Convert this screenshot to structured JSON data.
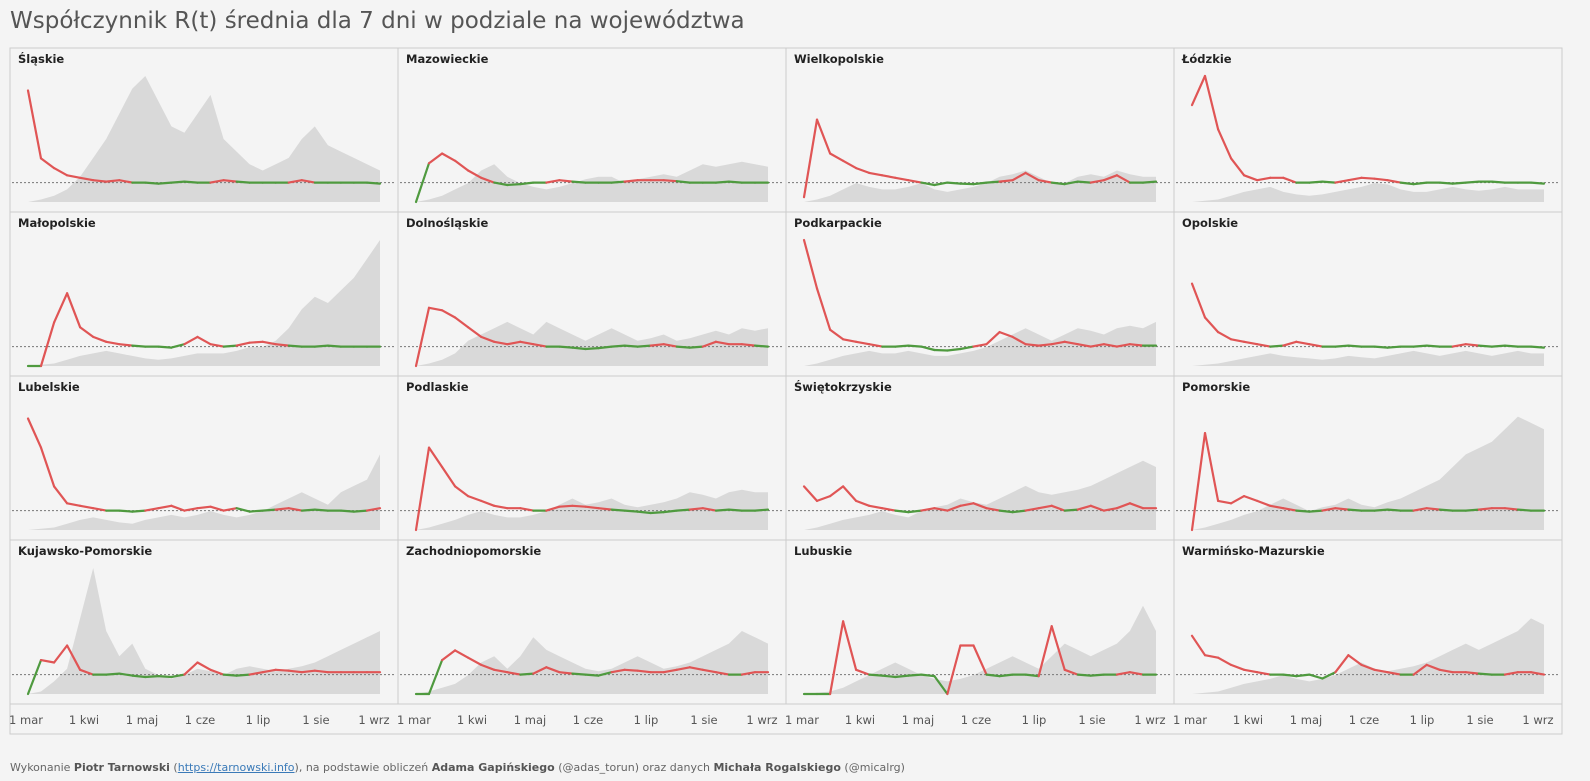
{
  "title": "Współczynnik R(t) średnia dla 7 dni w podziale na województwa",
  "footer": {
    "p1": "Wykonanie ",
    "author": "Piotr Tarnowski",
    "p2": " (",
    "link": "https://tarnowski.info",
    "p3": "), na podstawie obliczeń ",
    "calc": "Adama Gapińskiego",
    "p4": " (@adas_torun) oraz danych ",
    "data": "Michała Rogalskiego",
    "p5": " (@micalrg)"
  },
  "colors": {
    "above": "#e05555",
    "below": "#4f9a3f",
    "area": "#d9d9d9",
    "reference": "#777777",
    "border": "#cccccc"
  },
  "chart_data": {
    "type": "line",
    "ref_line": 1,
    "ylim": [
      0.6,
      3.2
    ],
    "x_ticks": [
      "1 mar",
      "1 kwi",
      "1 maj",
      "1 cze",
      "1 lip",
      "1 sie",
      "1 wrz"
    ],
    "series_encoding": "x = week index starting at 1 mar; Rt = 7-day average R(t); bg = relative daily cases (0-1)",
    "panels": [
      {
        "name": "Śląskie",
        "Rt": [
          2.9,
          1.5,
          1.3,
          1.15,
          1.1,
          1.05,
          1.02,
          1.05,
          1.0,
          1.0,
          0.98,
          1.0,
          1.02,
          1.0,
          1.0,
          1.05,
          1.02,
          1.0,
          1.0,
          1.0,
          1.0,
          1.05,
          1.0,
          1.0,
          1.0,
          1.0,
          1.0,
          0.98
        ],
        "bg": [
          0,
          0.02,
          0.05,
          0.1,
          0.2,
          0.35,
          0.5,
          0.7,
          0.9,
          1.0,
          0.8,
          0.6,
          0.55,
          0.7,
          0.85,
          0.5,
          0.4,
          0.3,
          0.25,
          0.3,
          0.35,
          0.5,
          0.6,
          0.45,
          0.4,
          0.35,
          0.3,
          0.25
        ]
      },
      {
        "name": "Mazowieckie",
        "Rt": [
          0.6,
          1.4,
          1.6,
          1.45,
          1.25,
          1.1,
          1.0,
          0.95,
          0.97,
          1.0,
          1.0,
          1.05,
          1.02,
          1.0,
          1.0,
          1.0,
          1.02,
          1.05,
          1.05,
          1.05,
          1.03,
          1.0,
          1.0,
          1.0,
          1.02,
          1.0,
          1.0,
          1.0
        ],
        "bg": [
          0,
          0.02,
          0.05,
          0.1,
          0.15,
          0.25,
          0.3,
          0.2,
          0.15,
          0.12,
          0.1,
          0.12,
          0.15,
          0.18,
          0.2,
          0.2,
          0.15,
          0.18,
          0.2,
          0.22,
          0.2,
          0.25,
          0.3,
          0.28,
          0.3,
          0.32,
          0.3,
          0.28
        ]
      },
      {
        "name": "Wielkopolskie",
        "Rt": [
          0.7,
          2.3,
          1.6,
          1.45,
          1.3,
          1.2,
          1.15,
          1.1,
          1.05,
          1.0,
          0.95,
          1.0,
          0.98,
          0.97,
          1.0,
          1.02,
          1.05,
          1.2,
          1.05,
          1.0,
          0.97,
          1.02,
          1.0,
          1.05,
          1.15,
          1.0,
          1.0,
          1.02
        ],
        "bg": [
          0,
          0.02,
          0.05,
          0.1,
          0.15,
          0.12,
          0.1,
          0.1,
          0.12,
          0.15,
          0.1,
          0.08,
          0.1,
          0.12,
          0.15,
          0.2,
          0.22,
          0.25,
          0.2,
          0.15,
          0.15,
          0.2,
          0.22,
          0.2,
          0.25,
          0.22,
          0.2,
          0.2
        ]
      },
      {
        "name": "Łódzkie",
        "Rt": [
          2.6,
          3.2,
          2.1,
          1.5,
          1.15,
          1.05,
          1.1,
          1.1,
          1.0,
          1.0,
          1.02,
          1.0,
          1.05,
          1.1,
          1.08,
          1.05,
          1.0,
          0.97,
          1.0,
          1.0,
          0.98,
          1.0,
          1.02,
          1.02,
          1.0,
          1.0,
          1.0,
          0.98
        ],
        "bg": [
          0,
          0.01,
          0.02,
          0.05,
          0.08,
          0.1,
          0.12,
          0.08,
          0.06,
          0.05,
          0.06,
          0.08,
          0.1,
          0.12,
          0.15,
          0.14,
          0.1,
          0.08,
          0.08,
          0.1,
          0.12,
          0.1,
          0.09,
          0.1,
          0.12,
          0.1,
          0.1,
          0.1
        ]
      },
      {
        "name": "Małopolskie",
        "Rt": [
          0.6,
          0.6,
          1.5,
          2.1,
          1.4,
          1.2,
          1.1,
          1.05,
          1.02,
          1.0,
          1.0,
          0.98,
          1.05,
          1.2,
          1.05,
          1.0,
          1.02,
          1.08,
          1.1,
          1.05,
          1.02,
          1.0,
          1.0,
          1.02,
          1.0,
          1.0,
          1.0,
          1.0
        ],
        "bg": [
          0,
          0.01,
          0.02,
          0.05,
          0.08,
          0.1,
          0.12,
          0.1,
          0.08,
          0.06,
          0.05,
          0.06,
          0.08,
          0.1,
          0.1,
          0.1,
          0.12,
          0.15,
          0.15,
          0.2,
          0.3,
          0.45,
          0.55,
          0.5,
          0.6,
          0.7,
          0.85,
          1.0
        ]
      },
      {
        "name": "Dolnośląskie",
        "Rt": [
          0.6,
          1.8,
          1.75,
          1.6,
          1.4,
          1.2,
          1.1,
          1.05,
          1.1,
          1.05,
          1.0,
          1.0,
          0.98,
          0.95,
          0.97,
          1.0,
          1.02,
          1.0,
          1.02,
          1.05,
          1.0,
          0.98,
          1.0,
          1.1,
          1.05,
          1.05,
          1.02,
          1.0
        ],
        "bg": [
          0,
          0.02,
          0.05,
          0.1,
          0.2,
          0.25,
          0.3,
          0.35,
          0.3,
          0.25,
          0.35,
          0.3,
          0.25,
          0.2,
          0.25,
          0.3,
          0.25,
          0.2,
          0.22,
          0.25,
          0.2,
          0.22,
          0.25,
          0.28,
          0.25,
          0.3,
          0.28,
          0.3
        ]
      },
      {
        "name": "Podkarpackie",
        "Rt": [
          3.2,
          2.2,
          1.35,
          1.15,
          1.1,
          1.05,
          1.0,
          1.0,
          1.02,
          1.0,
          0.93,
          0.92,
          0.95,
          1.0,
          1.05,
          1.3,
          1.2,
          1.05,
          1.02,
          1.05,
          1.1,
          1.05,
          1.0,
          1.05,
          1.0,
          1.05,
          1.02,
          1.02
        ],
        "bg": [
          0,
          0.02,
          0.05,
          0.08,
          0.1,
          0.12,
          0.1,
          0.1,
          0.12,
          0.1,
          0.08,
          0.08,
          0.1,
          0.12,
          0.15,
          0.2,
          0.25,
          0.3,
          0.25,
          0.2,
          0.25,
          0.3,
          0.28,
          0.25,
          0.3,
          0.32,
          0.3,
          0.35
        ]
      },
      {
        "name": "Opolskie",
        "Rt": [
          2.3,
          1.6,
          1.3,
          1.15,
          1.1,
          1.05,
          1.0,
          1.02,
          1.1,
          1.05,
          1.0,
          1.0,
          1.02,
          1.0,
          1.0,
          0.98,
          1.0,
          1.0,
          1.02,
          1.0,
          1.0,
          1.05,
          1.02,
          1.0,
          1.02,
          1.0,
          1.0,
          0.98
        ],
        "bg": [
          0,
          0.01,
          0.02,
          0.04,
          0.06,
          0.08,
          0.1,
          0.08,
          0.07,
          0.06,
          0.05,
          0.06,
          0.08,
          0.07,
          0.06,
          0.08,
          0.1,
          0.12,
          0.1,
          0.08,
          0.1,
          0.12,
          0.1,
          0.08,
          0.1,
          0.12,
          0.1,
          0.1
        ]
      },
      {
        "name": "Lubelskie",
        "Rt": [
          2.9,
          2.3,
          1.5,
          1.15,
          1.1,
          1.05,
          1.0,
          1.0,
          0.98,
          1.0,
          1.05,
          1.1,
          1.0,
          1.05,
          1.08,
          1.0,
          1.05,
          0.98,
          1.0,
          1.02,
          1.05,
          1.0,
          1.02,
          1.0,
          1.0,
          0.98,
          1.0,
          1.05
        ],
        "bg": [
          0,
          0.01,
          0.02,
          0.05,
          0.08,
          0.1,
          0.08,
          0.06,
          0.05,
          0.08,
          0.1,
          0.12,
          0.1,
          0.12,
          0.15,
          0.12,
          0.1,
          0.12,
          0.15,
          0.2,
          0.25,
          0.3,
          0.25,
          0.2,
          0.3,
          0.35,
          0.4,
          0.6
        ]
      },
      {
        "name": "Podlaskie",
        "Rt": [
          0.6,
          2.3,
          1.9,
          1.5,
          1.3,
          1.2,
          1.1,
          1.05,
          1.05,
          1.0,
          1.0,
          1.08,
          1.1,
          1.08,
          1.05,
          1.02,
          1.0,
          0.98,
          0.95,
          0.97,
          1.0,
          1.02,
          1.05,
          1.0,
          1.02,
          1.0,
          1.0,
          1.02
        ],
        "bg": [
          0,
          0.02,
          0.05,
          0.08,
          0.12,
          0.15,
          0.12,
          0.1,
          0.1,
          0.12,
          0.15,
          0.2,
          0.25,
          0.2,
          0.22,
          0.25,
          0.2,
          0.18,
          0.2,
          0.22,
          0.25,
          0.3,
          0.28,
          0.25,
          0.3,
          0.32,
          0.3,
          0.3
        ]
      },
      {
        "name": "Świętokrzyskie",
        "Rt": [
          1.5,
          1.2,
          1.3,
          1.5,
          1.2,
          1.1,
          1.05,
          1.0,
          0.97,
          1.0,
          1.05,
          1.0,
          1.1,
          1.15,
          1.05,
          1.0,
          0.97,
          1.0,
          1.05,
          1.1,
          1.0,
          1.02,
          1.1,
          1.0,
          1.05,
          1.15,
          1.05,
          1.05
        ],
        "bg": [
          0,
          0.02,
          0.05,
          0.08,
          0.1,
          0.12,
          0.15,
          0.12,
          0.1,
          0.15,
          0.18,
          0.2,
          0.25,
          0.22,
          0.2,
          0.25,
          0.3,
          0.35,
          0.3,
          0.28,
          0.3,
          0.32,
          0.35,
          0.4,
          0.45,
          0.5,
          0.55,
          0.5
        ]
      },
      {
        "name": "Pomorskie",
        "Rt": [
          0.6,
          2.6,
          1.2,
          1.15,
          1.3,
          1.2,
          1.1,
          1.05,
          1.0,
          0.98,
          1.0,
          1.05,
          1.02,
          1.0,
          1.0,
          1.02,
          1.0,
          1.0,
          1.05,
          1.02,
          1.0,
          1.0,
          1.02,
          1.05,
          1.05,
          1.02,
          1.0,
          1.0
        ],
        "bg": [
          0,
          0.02,
          0.05,
          0.08,
          0.12,
          0.15,
          0.2,
          0.25,
          0.2,
          0.15,
          0.18,
          0.2,
          0.25,
          0.2,
          0.18,
          0.22,
          0.25,
          0.3,
          0.35,
          0.4,
          0.5,
          0.6,
          0.65,
          0.7,
          0.8,
          0.9,
          0.85,
          0.8
        ]
      },
      {
        "name": "Kujawsko-Pomorskie",
        "Rt": [
          0.6,
          1.3,
          1.25,
          1.6,
          1.1,
          1.0,
          1.0,
          1.02,
          0.98,
          0.95,
          0.97,
          0.95,
          1.0,
          1.25,
          1.1,
          1.0,
          0.98,
          1.0,
          1.05,
          1.1,
          1.08,
          1.05,
          1.08,
          1.05,
          1.05,
          1.05,
          1.05,
          1.05
        ],
        "bg": [
          0,
          0.02,
          0.1,
          0.2,
          0.6,
          1.0,
          0.5,
          0.3,
          0.4,
          0.2,
          0.15,
          0.12,
          0.15,
          0.2,
          0.18,
          0.15,
          0.2,
          0.22,
          0.2,
          0.18,
          0.2,
          0.22,
          0.25,
          0.3,
          0.35,
          0.4,
          0.45,
          0.5
        ]
      },
      {
        "name": "Zachodniopomorskie",
        "Rt": [
          0.6,
          0.6,
          1.3,
          1.5,
          1.35,
          1.2,
          1.1,
          1.05,
          1.0,
          1.02,
          1.15,
          1.05,
          1.02,
          1.0,
          0.98,
          1.05,
          1.1,
          1.08,
          1.05,
          1.05,
          1.1,
          1.15,
          1.1,
          1.05,
          1.0,
          1.0,
          1.05,
          1.05
        ],
        "bg": [
          0,
          0.02,
          0.05,
          0.08,
          0.15,
          0.25,
          0.3,
          0.2,
          0.3,
          0.45,
          0.35,
          0.3,
          0.25,
          0.2,
          0.18,
          0.2,
          0.25,
          0.3,
          0.25,
          0.2,
          0.22,
          0.25,
          0.3,
          0.35,
          0.4,
          0.5,
          0.45,
          0.4
        ]
      },
      {
        "name": "Lubuskie",
        "Rt": [
          0.6,
          0.6,
          0.6,
          2.1,
          1.1,
          1.0,
          0.98,
          0.95,
          0.98,
          1.0,
          0.97,
          0.6,
          1.6,
          1.6,
          1.0,
          0.97,
          1.0,
          1.0,
          0.97,
          2.0,
          1.1,
          1.0,
          0.98,
          1.0,
          1.0,
          1.05,
          1.0,
          1.0
        ],
        "bg": [
          0,
          0.01,
          0.02,
          0.05,
          0.1,
          0.15,
          0.2,
          0.25,
          0.2,
          0.15,
          0.12,
          0.1,
          0.12,
          0.15,
          0.2,
          0.25,
          0.3,
          0.25,
          0.2,
          0.3,
          0.4,
          0.35,
          0.3,
          0.35,
          0.4,
          0.5,
          0.7,
          0.5
        ]
      },
      {
        "name": "Warmińsko-Mazurskie",
        "Rt": [
          1.8,
          1.4,
          1.35,
          1.2,
          1.1,
          1.05,
          1.0,
          1.0,
          0.97,
          1.0,
          0.92,
          1.05,
          1.4,
          1.2,
          1.1,
          1.05,
          1.0,
          1.0,
          1.2,
          1.1,
          1.05,
          1.05,
          1.02,
          1.0,
          1.0,
          1.05,
          1.05,
          1.0
        ],
        "bg": [
          0,
          0.01,
          0.02,
          0.05,
          0.08,
          0.1,
          0.12,
          0.15,
          0.12,
          0.1,
          0.12,
          0.15,
          0.2,
          0.25,
          0.2,
          0.18,
          0.2,
          0.22,
          0.25,
          0.3,
          0.35,
          0.4,
          0.35,
          0.4,
          0.45,
          0.5,
          0.6,
          0.55
        ]
      }
    ]
  }
}
